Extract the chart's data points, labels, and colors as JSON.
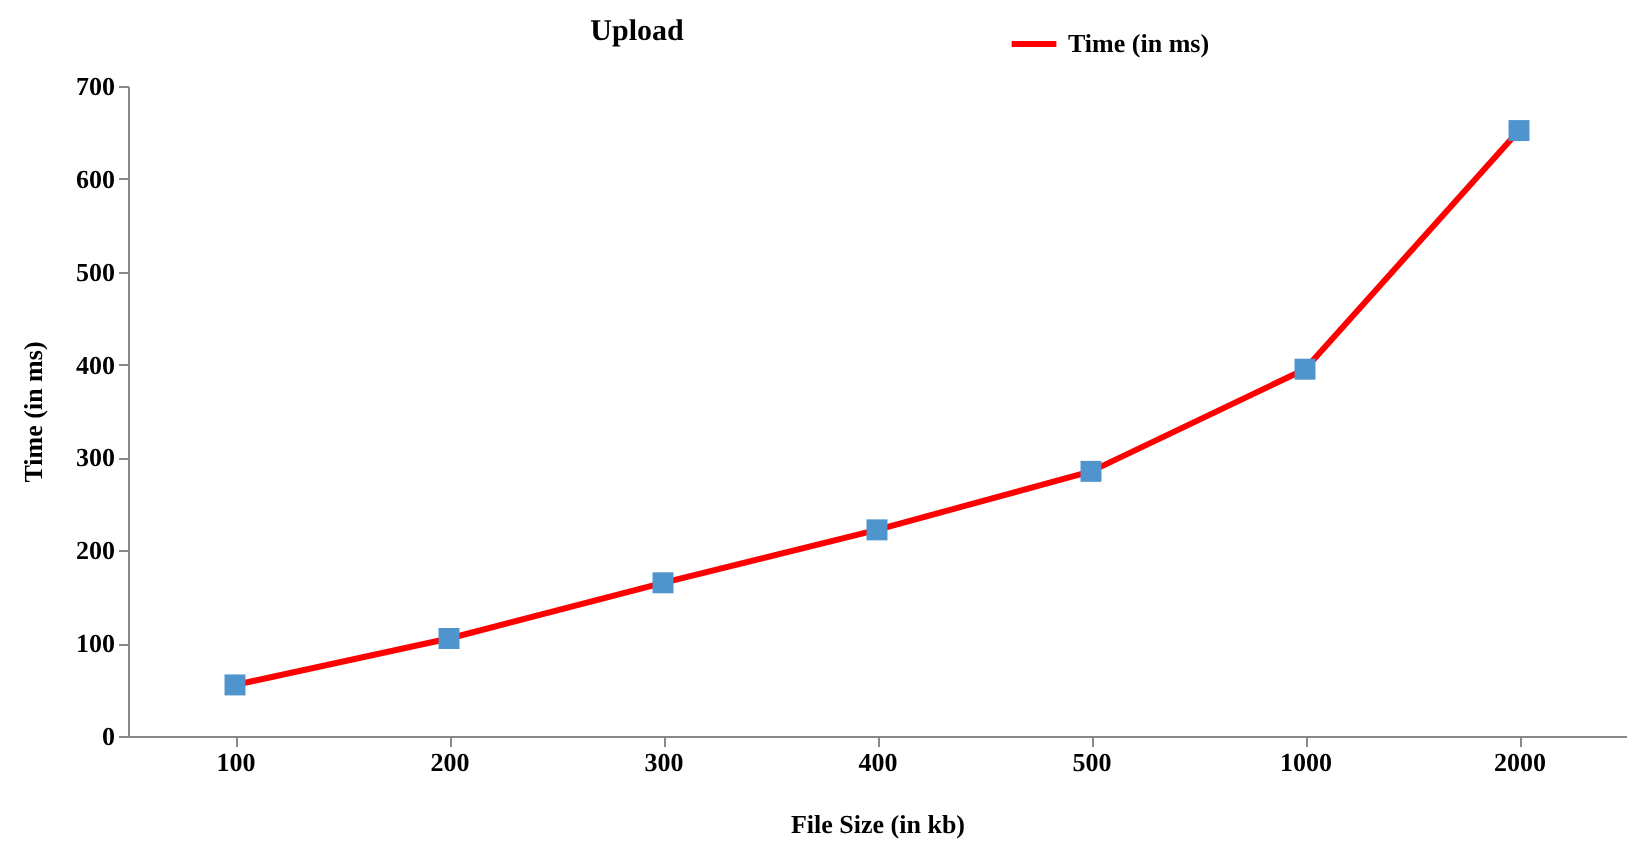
{
  "chart_data": {
    "type": "line",
    "title": "Upload",
    "xlabel": "File Size (in kb)",
    "ylabel": "Time (in ms)",
    "categories": [
      "100",
      "200",
      "300",
      "400",
      "500",
      "1000",
      "2000"
    ],
    "series": [
      {
        "name": "Time (in ms)",
        "color": "#ff0000",
        "values": [
          55,
          105,
          165,
          222,
          285,
          395,
          652
        ]
      }
    ],
    "ylim": [
      0,
      700
    ],
    "yticks": [
      0,
      100,
      200,
      300,
      400,
      500,
      600,
      700
    ],
    "grid": false,
    "legend": "top right",
    "marker": "square",
    "line_style": "solid"
  }
}
